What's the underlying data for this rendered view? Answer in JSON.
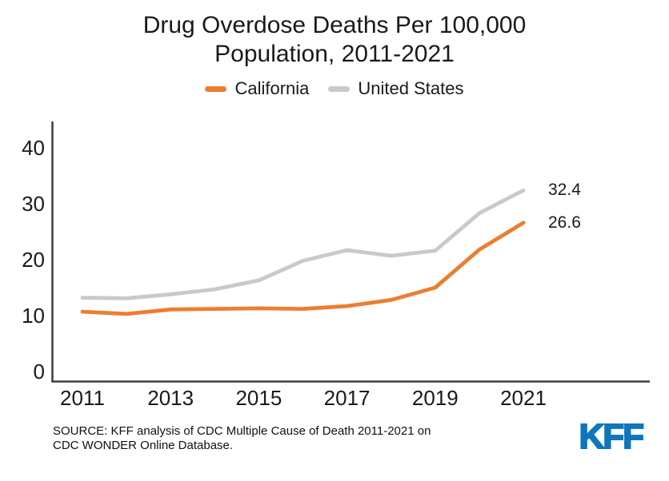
{
  "title": {
    "line1": "Drug Overdose Deaths Per 100,000",
    "line2": "Population, 2011-2021"
  },
  "legend": [
    {
      "label": "California",
      "color": "#ED7D2F"
    },
    {
      "label": "United States",
      "color": "#C9C9C9"
    }
  ],
  "chart_data": {
    "type": "line",
    "title": "Drug Overdose Deaths Per 100,000 Population, 2011-2021",
    "x": [
      2011,
      2012,
      2013,
      2014,
      2015,
      2016,
      2017,
      2018,
      2019,
      2020,
      2021
    ],
    "series": [
      {
        "name": "United States",
        "color": "#C9C9C9",
        "values": [
          13.2,
          13.1,
          13.8,
          14.7,
          16.3,
          19.8,
          21.7,
          20.7,
          21.6,
          28.3,
          32.4
        ],
        "end_label": "32.4"
      },
      {
        "name": "California",
        "color": "#ED7D2F",
        "values": [
          10.7,
          10.3,
          11.1,
          11.2,
          11.3,
          11.2,
          11.7,
          12.8,
          15.0,
          21.8,
          26.6
        ],
        "end_label": "26.6"
      }
    ],
    "xticks": [
      2011,
      2013,
      2015,
      2017,
      2019,
      2021
    ],
    "yticks": [
      0,
      10,
      20,
      30,
      40
    ],
    "ylim": [
      0,
      44
    ],
    "xlabel": "",
    "ylabel": "",
    "grid": false,
    "legend_position": "top",
    "axis_color": "#3d3d3d"
  },
  "source": {
    "line1": "SOURCE: KFF analysis of CDC Multiple Cause of Death 2011-2021 on",
    "line2": "CDC WONDER Online Database."
  },
  "logo": {
    "text": "KFF",
    "color": "#0D76BC"
  }
}
